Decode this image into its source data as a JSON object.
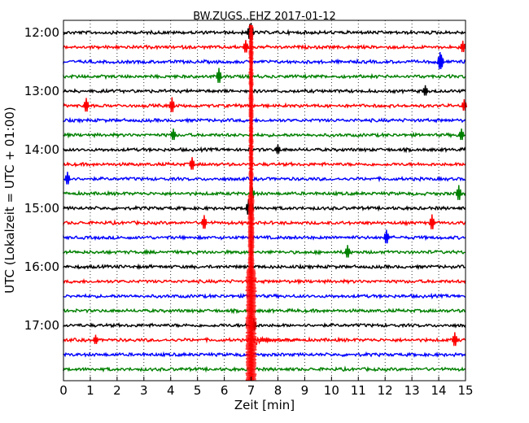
{
  "chart_data": {
    "type": "line",
    "subtype": "seismogram-helicorder",
    "title": "BW.ZUGS..EHZ 2017-01-12",
    "xlabel": "Zeit  [min]",
    "ylabel": "UTC (Lokalzeit = UTC + 01:00)",
    "xlim": [
      0,
      15
    ],
    "x_ticks": [
      "0",
      "1",
      "2",
      "3",
      "4",
      "5",
      "6",
      "7",
      "8",
      "9",
      "10",
      "11",
      "12",
      "13",
      "14",
      "15"
    ],
    "y_tick_labels": [
      "12:00",
      "13:00",
      "14:00",
      "15:00",
      "16:00",
      "17:00"
    ],
    "grid": "vertical-dotted",
    "trace_minutes": 15,
    "traces": [
      {
        "start": "12:00",
        "color": "#000000",
        "spikes": [
          [
            7.0,
            1.0
          ],
          [
            6.95,
            0.8
          ]
        ]
      },
      {
        "start": "12:15",
        "color": "#ff0000",
        "spikes": [
          [
            6.8,
            0.6
          ],
          [
            14.9,
            0.5
          ]
        ]
      },
      {
        "start": "12:30",
        "color": "#0000ff",
        "spikes": [
          [
            14.05,
            1.0
          ],
          [
            14.1,
            0.6
          ]
        ]
      },
      {
        "start": "12:45",
        "color": "#008000",
        "spikes": [
          [
            5.8,
            0.8
          ]
        ]
      },
      {
        "start": "13:00",
        "color": "#000000",
        "spikes": [
          [
            13.5,
            0.4
          ]
        ]
      },
      {
        "start": "13:15",
        "color": "#ff0000",
        "spikes": [
          [
            0.85,
            0.7
          ],
          [
            4.05,
            0.8
          ],
          [
            14.95,
            0.5
          ]
        ]
      },
      {
        "start": "13:30",
        "color": "#0000ff",
        "spikes": []
      },
      {
        "start": "13:45",
        "color": "#008000",
        "spikes": [
          [
            4.1,
            0.5
          ],
          [
            14.85,
            0.5
          ]
        ]
      },
      {
        "start": "14:00",
        "color": "#000000",
        "spikes": [
          [
            8.0,
            0.3
          ]
        ]
      },
      {
        "start": "14:15",
        "color": "#ff0000",
        "spikes": [
          [
            4.8,
            0.6
          ]
        ]
      },
      {
        "start": "14:30",
        "color": "#0000ff",
        "spikes": [
          [
            0.15,
            0.6
          ]
        ]
      },
      {
        "start": "14:45",
        "color": "#008000",
        "spikes": [
          [
            14.75,
            0.8
          ],
          [
            7.05,
            0.4
          ]
        ]
      },
      {
        "start": "15:00",
        "color": "#000000",
        "spikes": [
          [
            6.9,
            0.8
          ],
          [
            7.0,
            0.9
          ]
        ]
      },
      {
        "start": "15:15",
        "color": "#ff0000",
        "spikes": [
          [
            5.25,
            0.7
          ],
          [
            13.75,
            0.8
          ]
        ]
      },
      {
        "start": "15:30",
        "color": "#0000ff",
        "spikes": [
          [
            12.05,
            0.7
          ]
        ]
      },
      {
        "start": "15:45",
        "color": "#008000",
        "spikes": [
          [
            10.6,
            0.6
          ]
        ]
      },
      {
        "start": "16:00",
        "color": "#000000",
        "spikes": []
      },
      {
        "start": "16:15",
        "color": "#ff0000",
        "spikes": []
      },
      {
        "start": "16:30",
        "color": "#0000ff",
        "spikes": []
      },
      {
        "start": "16:45",
        "color": "#008000",
        "spikes": []
      },
      {
        "start": "17:00",
        "color": "#000000",
        "spikes": [
          [
            7.1,
            0.6
          ]
        ]
      },
      {
        "start": "17:15",
        "color": "#ff0000",
        "spikes": [
          [
            14.6,
            0.7
          ],
          [
            1.2,
            0.3
          ]
        ]
      },
      {
        "start": "17:30",
        "color": "#0000ff",
        "spikes": []
      },
      {
        "start": "17:45",
        "color": "#008000",
        "spikes": []
      }
    ],
    "event": {
      "minute": 7.0,
      "color": "#ff0000",
      "coda_trace": "17:15",
      "coda_end_minute": 8.8
    }
  }
}
